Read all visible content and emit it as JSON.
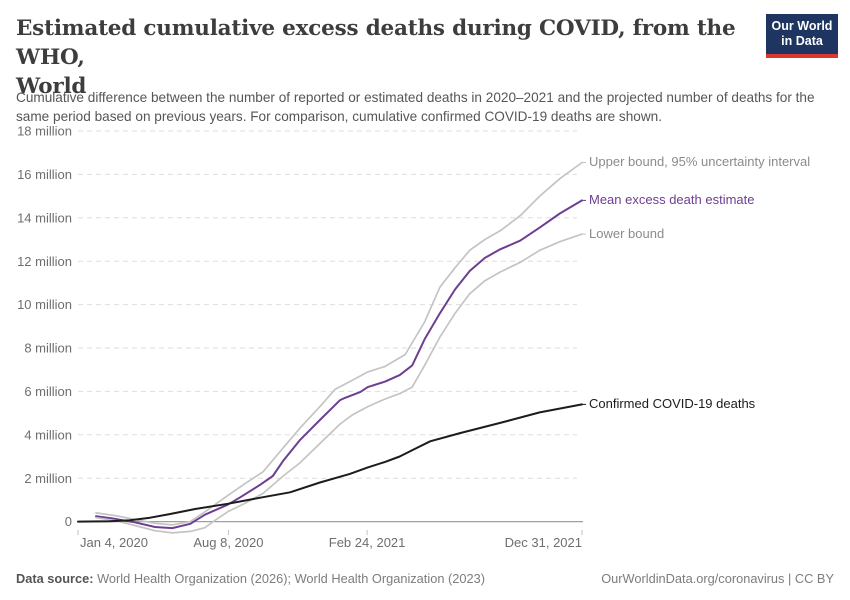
{
  "header": {
    "title_line1": "Estimated cumulative excess deaths during COVID, from the WHO,",
    "title_line2": "World",
    "logo": {
      "line1": "Our World",
      "line2": "in Data",
      "bg": "#1d3560",
      "accent": "#dc382d"
    }
  },
  "subtitle": "Cumulative difference between the number of reported or estimated deaths in 2020–2021 and the projected number of deaths for the same period based on previous years. For comparison, cumulative confirmed COVID-19 deaths are shown.",
  "chart_data": {
    "type": "line",
    "title": "Estimated cumulative excess deaths during COVID, from the WHO, World",
    "unit": "deaths (millions)",
    "x_axis": {
      "unit": "days since 2020-01-04",
      "range_days": [
        0,
        727
      ],
      "ticks": [
        {
          "day": 0,
          "label": "Jan 4, 2020",
          "align": "start"
        },
        {
          "day": 217,
          "label": "Aug 8, 2020",
          "align": "middle"
        },
        {
          "day": 417,
          "label": "Feb 24, 2021",
          "align": "middle"
        },
        {
          "day": 727,
          "label": "Dec 31, 2021",
          "align": "end"
        }
      ]
    },
    "y_axis": {
      "range_millions": [
        -0.6,
        18
      ],
      "grid": true,
      "ticks": [
        {
          "value": 0,
          "label": "0"
        },
        {
          "value": 2,
          "label": "2 million"
        },
        {
          "value": 4,
          "label": "4 million"
        },
        {
          "value": 6,
          "label": "6 million"
        },
        {
          "value": 8,
          "label": "8 million"
        },
        {
          "value": 10,
          "label": "10 million"
        },
        {
          "value": 12,
          "label": "12 million"
        },
        {
          "value": 14,
          "label": "14 million"
        },
        {
          "value": 16,
          "label": "16 million"
        },
        {
          "value": 18,
          "label": "18 million"
        }
      ]
    },
    "legend_position": "end-of-line labels, right side",
    "style": {
      "grid_line": "#dedede",
      "zero_line": "#a0a0a0",
      "axis_text": "#6e6e6e",
      "tick_mark": "#c2c2c2"
    },
    "series": [
      {
        "id": "upper",
        "label": "Upper bound, 95% uncertainty interval",
        "color": "#c4c4c4",
        "label_color": "#8b8b8b",
        "width": 1.7,
        "points": [
          [
            26,
            0.4
          ],
          [
            53,
            0.28
          ],
          [
            82,
            0.1
          ],
          [
            111,
            -0.08
          ],
          [
            136,
            -0.15
          ],
          [
            162,
            0.0
          ],
          [
            183,
            0.45
          ],
          [
            216,
            1.2
          ],
          [
            241,
            1.75
          ],
          [
            267,
            2.3
          ],
          [
            296,
            3.4
          ],
          [
            320,
            4.3
          ],
          [
            349,
            5.3
          ],
          [
            371,
            6.1
          ],
          [
            392,
            6.45
          ],
          [
            418,
            6.9
          ],
          [
            443,
            7.15
          ],
          [
            472,
            7.7
          ],
          [
            500,
            9.2
          ],
          [
            522,
            10.8
          ],
          [
            544,
            11.7
          ],
          [
            565,
            12.5
          ],
          [
            587,
            13.0
          ],
          [
            609,
            13.4
          ],
          [
            638,
            14.1
          ],
          [
            666,
            15.0
          ],
          [
            695,
            15.8
          ],
          [
            727,
            16.55
          ]
        ]
      },
      {
        "id": "mean",
        "label": "Mean excess death estimate",
        "color": "#6d3e91",
        "label_color": "#6d3e91",
        "width": 2,
        "points": [
          [
            26,
            0.25
          ],
          [
            53,
            0.13
          ],
          [
            82,
            -0.03
          ],
          [
            111,
            -0.25
          ],
          [
            136,
            -0.3
          ],
          [
            162,
            -0.1
          ],
          [
            183,
            0.32
          ],
          [
            216,
            0.78
          ],
          [
            234,
            1.12
          ],
          [
            263,
            1.7
          ],
          [
            281,
            2.1
          ],
          [
            296,
            2.8
          ],
          [
            320,
            3.75
          ],
          [
            349,
            4.68
          ],
          [
            378,
            5.6
          ],
          [
            385,
            5.7
          ],
          [
            407,
            5.97
          ],
          [
            418,
            6.2
          ],
          [
            443,
            6.45
          ],
          [
            464,
            6.75
          ],
          [
            482,
            7.2
          ],
          [
            500,
            8.4
          ],
          [
            522,
            9.6
          ],
          [
            544,
            10.7
          ],
          [
            565,
            11.55
          ],
          [
            587,
            12.15
          ],
          [
            609,
            12.55
          ],
          [
            638,
            12.95
          ],
          [
            666,
            13.55
          ],
          [
            695,
            14.2
          ],
          [
            727,
            14.8
          ]
        ]
      },
      {
        "id": "lower",
        "label": "Lower bound",
        "color": "#c4c4c4",
        "label_color": "#8b8b8b",
        "width": 1.7,
        "points": [
          [
            26,
            0.18
          ],
          [
            53,
            0.05
          ],
          [
            82,
            -0.18
          ],
          [
            111,
            -0.42
          ],
          [
            136,
            -0.52
          ],
          [
            162,
            -0.45
          ],
          [
            183,
            -0.28
          ],
          [
            195,
            0.0
          ],
          [
            216,
            0.45
          ],
          [
            241,
            0.85
          ],
          [
            267,
            1.3
          ],
          [
            296,
            2.1
          ],
          [
            320,
            2.7
          ],
          [
            349,
            3.6
          ],
          [
            378,
            4.5
          ],
          [
            395,
            4.9
          ],
          [
            418,
            5.3
          ],
          [
            443,
            5.65
          ],
          [
            464,
            5.9
          ],
          [
            482,
            6.2
          ],
          [
            500,
            7.2
          ],
          [
            522,
            8.5
          ],
          [
            544,
            9.6
          ],
          [
            565,
            10.5
          ],
          [
            587,
            11.1
          ],
          [
            609,
            11.5
          ],
          [
            638,
            11.95
          ],
          [
            666,
            12.5
          ],
          [
            695,
            12.9
          ],
          [
            727,
            13.25
          ]
        ]
      },
      {
        "id": "confirmed",
        "label": "Confirmed COVID-19 deaths",
        "color": "#1c1c1c",
        "label_color": "#1c1c1c",
        "width": 2,
        "points": [
          [
            0,
            0.0
          ],
          [
            46,
            0.02
          ],
          [
            75,
            0.06
          ],
          [
            104,
            0.18
          ],
          [
            133,
            0.35
          ],
          [
            169,
            0.58
          ],
          [
            216,
            0.82
          ],
          [
            263,
            1.1
          ],
          [
            306,
            1.35
          ],
          [
            349,
            1.8
          ],
          [
            392,
            2.2
          ],
          [
            418,
            2.5
          ],
          [
            443,
            2.75
          ],
          [
            464,
            3.0
          ],
          [
            486,
            3.35
          ],
          [
            508,
            3.7
          ],
          [
            551,
            4.08
          ],
          [
            609,
            4.55
          ],
          [
            666,
            5.03
          ],
          [
            727,
            5.4
          ]
        ]
      }
    ]
  },
  "footer": {
    "source_label": "Data source:",
    "source_text": " World Health Organization (2026); World Health Organization (2023)",
    "credit": "OurWorldinData.org/coronavirus | CC BY"
  }
}
